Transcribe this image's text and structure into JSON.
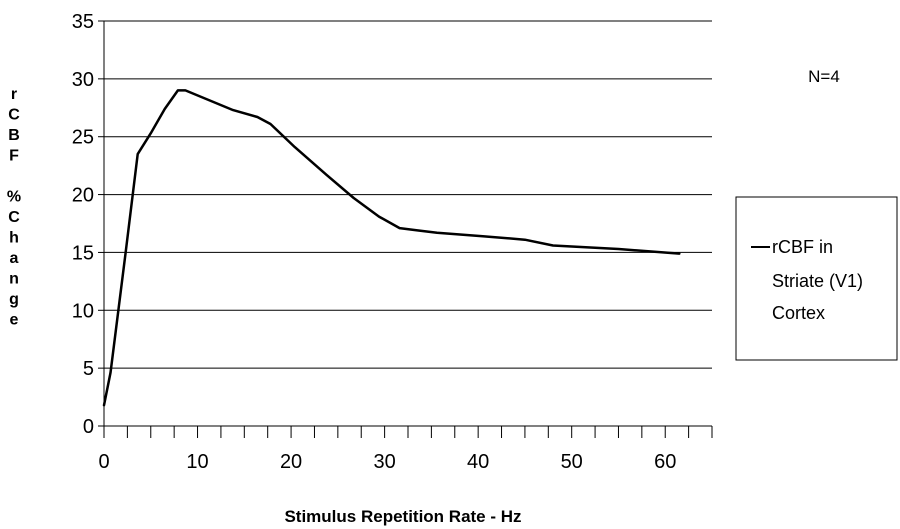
{
  "chart_data": {
    "type": "line",
    "title": "",
    "xlabel": "Stimulus Repetition Rate - Hz",
    "ylabel_lines": [
      "r",
      "C",
      "B",
      "F",
      "",
      "%",
      "C",
      "h",
      "a",
      "n",
      "g",
      "e"
    ],
    "xlim": [
      0,
      65
    ],
    "ylim": [
      0,
      35
    ],
    "x_ticks": [
      0,
      10,
      20,
      30,
      40,
      50,
      60
    ],
    "y_ticks": [
      0,
      5,
      10,
      15,
      20,
      25,
      30,
      35
    ],
    "grid": "horizontal",
    "annotation": "N=4",
    "legend_position": "right",
    "legend_lines": [
      "rCBF in",
      "Striate (V1)",
      "Cortex"
    ],
    "colors": {
      "line": "#000000",
      "grid": "#000000",
      "background": "#ffffff"
    },
    "series": [
      {
        "name": "rCBF in Striate (V1) Cortex",
        "x": [
          0,
          0.7,
          2.3,
          3.6,
          5.0,
          6.5,
          7.9,
          8.7,
          10.8,
          13.8,
          16.4,
          17.8,
          20.4,
          23.8,
          26.7,
          29.4,
          31.6,
          33.5,
          35.6,
          40.5,
          45.0,
          48.0,
          55.0,
          61.5
        ],
        "y": [
          1.8,
          4.6,
          14.9,
          23.5,
          25.3,
          27.4,
          29.0,
          29.0,
          28.3,
          27.3,
          26.7,
          26.1,
          24.1,
          21.7,
          19.7,
          18.1,
          17.1,
          16.9,
          16.7,
          16.4,
          16.1,
          15.6,
          15.3,
          14.9
        ]
      }
    ]
  }
}
